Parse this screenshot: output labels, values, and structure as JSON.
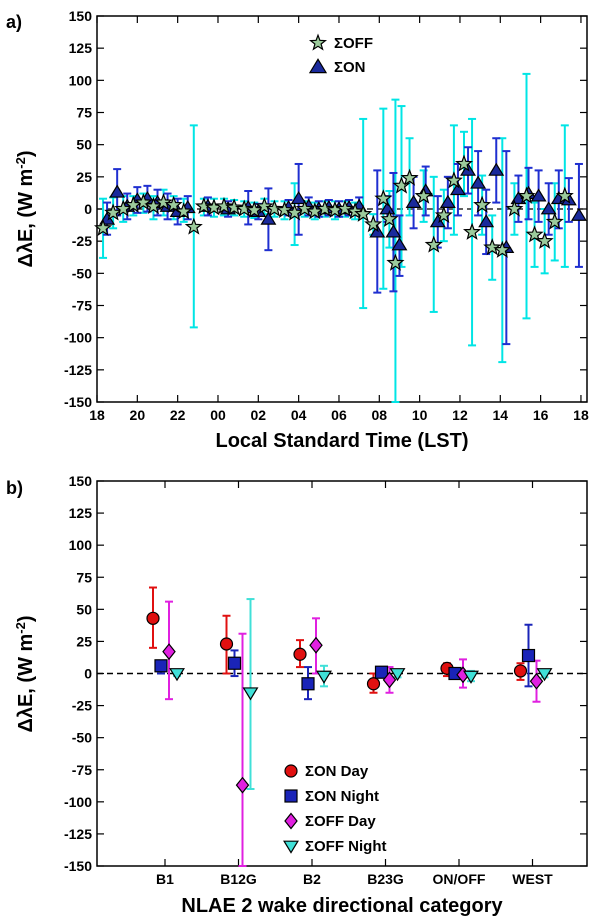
{
  "chart_data": [
    {
      "panel_label": "a)",
      "type": "scatter",
      "xlabel": "Local Standard Time (LST)",
      "ylabel": "ΔλE, (W m-2)",
      "ylabel_main": "ΔλE, (W m",
      "ylabel_sup": "-2",
      "ylabel_close": ")",
      "xlim": [
        18,
        42.3
      ],
      "ylim": [
        -150,
        150
      ],
      "x_ticks": [
        18,
        20,
        22,
        24,
        26,
        28,
        30,
        32,
        34,
        36,
        38,
        40,
        42
      ],
      "x_tick_labels": [
        "18",
        "20",
        "22",
        "00",
        "02",
        "04",
        "06",
        "08",
        "10",
        "12",
        "14",
        "16",
        "18"
      ],
      "y_ticks": [
        -150,
        -125,
        -100,
        -75,
        -50,
        -25,
        0,
        25,
        50,
        75,
        100,
        125,
        150
      ],
      "y_tick_labels": [
        "-150",
        "-125",
        "-100",
        "-75",
        "-50",
        "-25",
        "0",
        "25",
        "50",
        "75",
        "100",
        "125",
        "150"
      ],
      "zero_line": "dashed",
      "legend_position": "top-center",
      "series": [
        {
          "name": "ΣOFF",
          "marker": "star",
          "color": "#9ccb9c",
          "error_color": "#00e5e5",
          "points": [
            {
              "x": 18.3,
              "y": -15,
              "lo": -38,
              "hi": 8
            },
            {
              "x": 18.8,
              "y": -3,
              "lo": -15,
              "hi": 9
            },
            {
              "x": 19.3,
              "y": 0,
              "lo": -10,
              "hi": 10
            },
            {
              "x": 19.8,
              "y": 3,
              "lo": -5,
              "hi": 10
            },
            {
              "x": 20.3,
              "y": 5,
              "lo": -3,
              "hi": 12
            },
            {
              "x": 20.8,
              "y": 2,
              "lo": -8,
              "hi": 10
            },
            {
              "x": 21.3,
              "y": 5,
              "lo": -5,
              "hi": 15
            },
            {
              "x": 21.8,
              "y": 3,
              "lo": -8,
              "hi": 10
            },
            {
              "x": 22.3,
              "y": -2,
              "lo": -10,
              "hi": 8
            },
            {
              "x": 22.8,
              "y": -14,
              "lo": -92,
              "hi": 65
            },
            {
              "x": 23.3,
              "y": 2,
              "lo": -5,
              "hi": 8
            },
            {
              "x": 23.8,
              "y": 1,
              "lo": -6,
              "hi": 8
            },
            {
              "x": 24.3,
              "y": 2,
              "lo": -5,
              "hi": 8
            },
            {
              "x": 24.8,
              "y": 1,
              "lo": -5,
              "hi": 7
            },
            {
              "x": 25.3,
              "y": 0,
              "lo": -6,
              "hi": 6
            },
            {
              "x": 25.8,
              "y": -1,
              "lo": -7,
              "hi": 5
            },
            {
              "x": 26.3,
              "y": 2,
              "lo": -4,
              "hi": 8
            },
            {
              "x": 26.8,
              "y": 0,
              "lo": -6,
              "hi": 6
            },
            {
              "x": 27.3,
              "y": -1,
              "lo": -8,
              "hi": 6
            },
            {
              "x": 27.8,
              "y": -3,
              "lo": -28,
              "hi": 20
            },
            {
              "x": 28.3,
              "y": 0,
              "lo": -6,
              "hi": 6
            },
            {
              "x": 28.8,
              "y": -2,
              "lo": -8,
              "hi": 5
            },
            {
              "x": 29.3,
              "y": 0,
              "lo": -6,
              "hi": 6
            },
            {
              "x": 29.8,
              "y": -1,
              "lo": -8,
              "hi": 6
            },
            {
              "x": 30.3,
              "y": 0,
              "lo": -6,
              "hi": 6
            },
            {
              "x": 30.8,
              "y": -2,
              "lo": -8,
              "hi": 5
            },
            {
              "x": 31.2,
              "y": -4,
              "lo": -77,
              "hi": 70
            },
            {
              "x": 31.7,
              "y": -12,
              "lo": -20,
              "hi": -4
            },
            {
              "x": 32.2,
              "y": 8,
              "lo": -62,
              "hi": 78
            },
            {
              "x": 32.5,
              "y": -8,
              "lo": -30,
              "hi": 14
            },
            {
              "x": 32.8,
              "y": -42,
              "lo": -150,
              "hi": 85
            },
            {
              "x": 33.1,
              "y": 18,
              "lo": -45,
              "hi": 80
            },
            {
              "x": 33.5,
              "y": 24,
              "lo": -5,
              "hi": 55
            },
            {
              "x": 34.2,
              "y": 10,
              "lo": -10,
              "hi": 30
            },
            {
              "x": 34.7,
              "y": -28,
              "lo": -80,
              "hi": 25
            },
            {
              "x": 35.2,
              "y": -5,
              "lo": -25,
              "hi": 15
            },
            {
              "x": 35.7,
              "y": 22,
              "lo": -20,
              "hi": 65
            },
            {
              "x": 36.2,
              "y": 35,
              "lo": 10,
              "hi": 60
            },
            {
              "x": 36.6,
              "y": -18,
              "lo": -106,
              "hi": 70
            },
            {
              "x": 37.1,
              "y": 3,
              "lo": -20,
              "hi": 26
            },
            {
              "x": 37.6,
              "y": -30,
              "lo": -55,
              "hi": -5
            },
            {
              "x": 38.1,
              "y": -32,
              "lo": -119,
              "hi": 55
            },
            {
              "x": 38.7,
              "y": 0,
              "lo": -20,
              "hi": 20
            },
            {
              "x": 39.3,
              "y": 10,
              "lo": -85,
              "hi": 105
            },
            {
              "x": 39.7,
              "y": -20,
              "lo": -45,
              "hi": 5
            },
            {
              "x": 40.2,
              "y": -25,
              "lo": -50,
              "hi": 0
            },
            {
              "x": 40.7,
              "y": -10,
              "lo": -40,
              "hi": 20
            },
            {
              "x": 41.2,
              "y": 10,
              "lo": -45,
              "hi": 65
            }
          ]
        },
        {
          "name": "ΣON",
          "marker": "triangle-up",
          "color": "#1a2a9c",
          "error_color": "#1f2fd0",
          "points": [
            {
              "x": 18.5,
              "y": -8,
              "lo": -20,
              "hi": 5
            },
            {
              "x": 19.0,
              "y": 13,
              "lo": -5,
              "hi": 31
            },
            {
              "x": 19.5,
              "y": 2,
              "lo": -8,
              "hi": 12
            },
            {
              "x": 20.0,
              "y": 7,
              "lo": -3,
              "hi": 17
            },
            {
              "x": 20.5,
              "y": 8,
              "lo": -2,
              "hi": 18
            },
            {
              "x": 21.0,
              "y": 5,
              "lo": -5,
              "hi": 15
            },
            {
              "x": 21.5,
              "y": 2,
              "lo": -8,
              "hi": 12
            },
            {
              "x": 22.0,
              "y": -2,
              "lo": -12,
              "hi": 8
            },
            {
              "x": 22.5,
              "y": 1,
              "lo": -8,
              "hi": 10
            },
            {
              "x": 23.5,
              "y": 2,
              "lo": -5,
              "hi": 9
            },
            {
              "x": 24.5,
              "y": 0,
              "lo": -6,
              "hi": 6
            },
            {
              "x": 25.5,
              "y": 1,
              "lo": -12,
              "hi": 14
            },
            {
              "x": 26.0,
              "y": -2,
              "lo": -8,
              "hi": 4
            },
            {
              "x": 26.5,
              "y": -8,
              "lo": -32,
              "hi": 16
            },
            {
              "x": 27.5,
              "y": 1,
              "lo": -5,
              "hi": 7
            },
            {
              "x": 28.0,
              "y": 8,
              "lo": -20,
              "hi": 35
            },
            {
              "x": 28.5,
              "y": 2,
              "lo": -5,
              "hi": 9
            },
            {
              "x": 29.0,
              "y": 0,
              "lo": -6,
              "hi": 6
            },
            {
              "x": 29.5,
              "y": 1,
              "lo": -5,
              "hi": 7
            },
            {
              "x": 30.0,
              "y": 0,
              "lo": -6,
              "hi": 6
            },
            {
              "x": 30.5,
              "y": 1,
              "lo": -5,
              "hi": 7
            },
            {
              "x": 31.0,
              "y": 2,
              "lo": -5,
              "hi": 9
            },
            {
              "x": 31.9,
              "y": -18,
              "lo": -65,
              "hi": 30
            },
            {
              "x": 32.4,
              "y": 0,
              "lo": -10,
              "hi": 10
            },
            {
              "x": 32.7,
              "y": -18,
              "lo": -64,
              "hi": 28
            },
            {
              "x": 33.0,
              "y": -28,
              "lo": -52,
              "hi": -5
            },
            {
              "x": 33.7,
              "y": 5,
              "lo": -15,
              "hi": 25
            },
            {
              "x": 34.3,
              "y": 14,
              "lo": -5,
              "hi": 33
            },
            {
              "x": 34.9,
              "y": -10,
              "lo": -30,
              "hi": 10
            },
            {
              "x": 35.4,
              "y": 5,
              "lo": -15,
              "hi": 25
            },
            {
              "x": 35.9,
              "y": 15,
              "lo": -5,
              "hi": 35
            },
            {
              "x": 36.4,
              "y": 30,
              "lo": 12,
              "hi": 48
            },
            {
              "x": 36.9,
              "y": 20,
              "lo": -5,
              "hi": 45
            },
            {
              "x": 37.3,
              "y": -10,
              "lo": -35,
              "hi": 15
            },
            {
              "x": 37.8,
              "y": 30,
              "lo": 5,
              "hi": 55
            },
            {
              "x": 38.3,
              "y": -30,
              "lo": -105,
              "hi": 45
            },
            {
              "x": 38.9,
              "y": 8,
              "lo": -10,
              "hi": 26
            },
            {
              "x": 39.4,
              "y": 12,
              "lo": -8,
              "hi": 32
            },
            {
              "x": 39.9,
              "y": 10,
              "lo": -10,
              "hi": 30
            },
            {
              "x": 40.4,
              "y": 0,
              "lo": -20,
              "hi": 20
            },
            {
              "x": 40.9,
              "y": 8,
              "lo": -15,
              "hi": 30
            },
            {
              "x": 41.4,
              "y": 7,
              "lo": -10,
              "hi": 24
            },
            {
              "x": 41.9,
              "y": -5,
              "lo": -45,
              "hi": 35
            }
          ]
        }
      ]
    },
    {
      "panel_label": "b)",
      "type": "scatter",
      "xlabel": "NLAE 2 wake directional category",
      "ylabel": "ΔλE, (W m-2)",
      "ylabel_main": "ΔλE, (W m",
      "ylabel_sup": "-2",
      "ylabel_close": ")",
      "categories": [
        "B1",
        "B12G",
        "B2",
        "B23G",
        "ON/OFF",
        "WEST"
      ],
      "ylim": [
        -150,
        150
      ],
      "y_ticks": [
        -150,
        -125,
        -100,
        -75,
        -50,
        -25,
        0,
        25,
        50,
        75,
        100,
        125,
        150
      ],
      "y_tick_labels": [
        "-150",
        "-125",
        "-100",
        "-75",
        "-50",
        "-25",
        "0",
        "25",
        "50",
        "75",
        "100",
        "125",
        "150"
      ],
      "zero_line": "dashed",
      "legend_position": "bottom-center",
      "series": [
        {
          "name": "ΣON Day",
          "marker": "circle",
          "color": "#e01010",
          "offset": -0.3,
          "points": [
            {
              "y": 43,
              "lo": 20,
              "hi": 67
            },
            {
              "y": 23,
              "lo": 0,
              "hi": 45
            },
            {
              "y": 15,
              "lo": 5,
              "hi": 26
            },
            {
              "y": -8,
              "lo": -15,
              "hi": 0
            },
            {
              "y": 4,
              "lo": -2,
              "hi": 8
            },
            {
              "y": 2,
              "lo": -5,
              "hi": 8
            }
          ]
        },
        {
          "name": "ΣON Night",
          "marker": "square",
          "color": "#1a24b8",
          "offset": -0.1,
          "points": [
            {
              "y": 6,
              "lo": 0,
              "hi": 10
            },
            {
              "y": 8,
              "lo": -2,
              "hi": 18
            },
            {
              "y": -8,
              "lo": -20,
              "hi": 5
            },
            {
              "y": 1,
              "lo": -3,
              "hi": 5
            },
            {
              "y": 0,
              "lo": -3,
              "hi": 3
            },
            {
              "y": 14,
              "lo": -10,
              "hi": 38
            }
          ]
        },
        {
          "name": "ΣOFF Day",
          "marker": "diamond",
          "color": "#e020e0",
          "offset": 0.1,
          "points": [
            {
              "y": 17,
              "lo": -20,
              "hi": 56
            },
            {
              "y": -87,
              "lo": -150,
              "hi": 31
            },
            {
              "y": 22,
              "lo": 0,
              "hi": 43
            },
            {
              "y": -5,
              "lo": -15,
              "hi": 5
            },
            {
              "y": -1,
              "lo": -11,
              "hi": 11
            },
            {
              "y": -6,
              "lo": -22,
              "hi": 10
            }
          ]
        },
        {
          "name": "ΣOFF Night",
          "marker": "triangle-down",
          "color": "#40e0d8",
          "offset": 0.3,
          "points": [
            {
              "y": 0,
              "lo": -2,
              "hi": 2
            },
            {
              "y": -15,
              "lo": -90,
              "hi": 58
            },
            {
              "y": -2,
              "lo": -10,
              "hi": 6
            },
            {
              "y": 0,
              "lo": -3,
              "hi": 3
            },
            {
              "y": -2,
              "lo": -6,
              "hi": 2
            },
            {
              "y": 0,
              "lo": -3,
              "hi": 3
            }
          ]
        }
      ]
    }
  ]
}
